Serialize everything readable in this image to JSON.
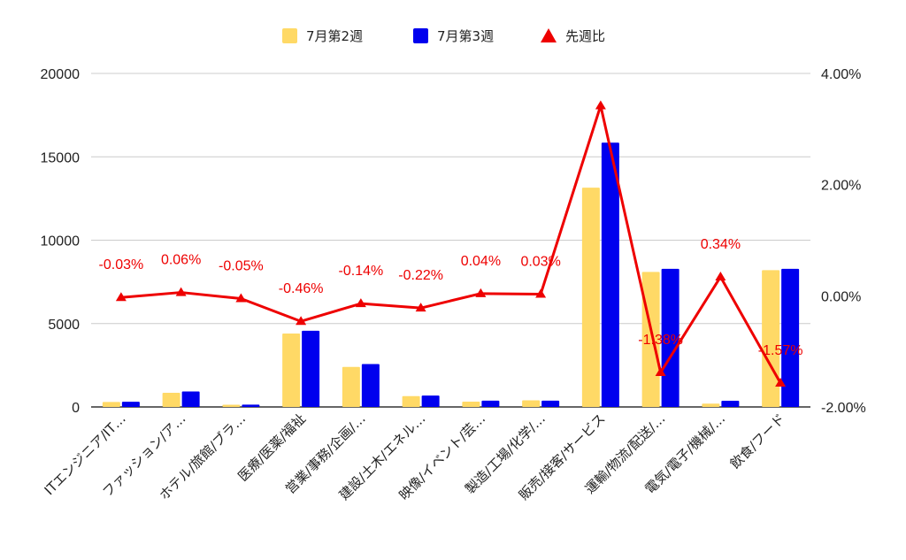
{
  "chart_data": {
    "type": "bar",
    "categories": [
      "ITエンジニア/IT…",
      "ファッション/ア…",
      "ホテル/旅館/ブラ…",
      "医療/医薬/福祉",
      "営業/事務/企画/…",
      "建設/土木/エネル…",
      "映像/イベント/芸…",
      "製造/工場/化学/…",
      "販売/接客/サービス",
      "運輸/物流/配送/…",
      "電気/電子/機械/…",
      "飲食/フード"
    ],
    "series": [
      {
        "name": "7月第2週",
        "type": "bar",
        "axis": "left",
        "color": "#ffd966",
        "values": [
          300,
          850,
          130,
          4400,
          2400,
          650,
          320,
          400,
          13150,
          8100,
          200,
          8200
        ]
      },
      {
        "name": "7月第3週",
        "type": "bar",
        "axis": "left",
        "color": "#0000ee",
        "values": [
          310,
          930,
          140,
          4570,
          2570,
          680,
          380,
          380,
          15850,
          8280,
          370,
          8280
        ]
      },
      {
        "name": "先週比",
        "type": "line",
        "axis": "right",
        "color": "#ee0000",
        "values": [
          -0.03,
          0.06,
          -0.05,
          -0.46,
          -0.14,
          -0.22,
          0.04,
          0.03,
          3.42,
          -1.38,
          0.34,
          -1.57
        ],
        "labels": [
          "-0.03%",
          "0.06%",
          "-0.05%",
          "-0.46%",
          "-0.14%",
          "-0.22%",
          "0.04%",
          "0.03%",
          "",
          "-1.38%",
          "0.34%",
          "-1.57%"
        ]
      }
    ],
    "y_left": {
      "ticks": [
        "0",
        "5000",
        "10000",
        "15000",
        "20000"
      ],
      "ylim": [
        0,
        20000
      ]
    },
    "y_right": {
      "ticks": [
        "-2.00%",
        "0.00%",
        "2.00%",
        "4.00%"
      ],
      "ylim": [
        -2,
        4
      ]
    },
    "grid": true,
    "legend": "top-center"
  }
}
